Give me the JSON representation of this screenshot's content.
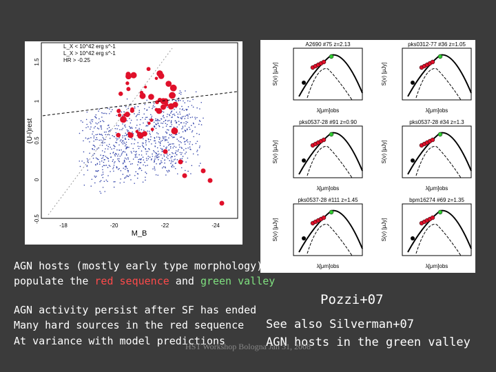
{
  "left_plot": {
    "legend": [
      "L_X < 10^42 erg s^-1",
      "L_X > 10^42 erg s^-1",
      "HR > -0.25"
    ],
    "ylabel": "(U-I)rest",
    "xlabel": "M_B",
    "yticks": [
      "-0.5",
      "0",
      "0.5",
      "1",
      "1.5"
    ],
    "xticks": [
      "-18",
      "-20",
      "-22",
      "-24"
    ]
  },
  "right_panels": [
    {
      "title": "A2690 #75 z=2.13",
      "ylabel": "S(ν) [μJy]",
      "xlabel": "λ[μm]obs"
    },
    {
      "title": "pks0312-77 #36 z=1.05",
      "ylabel": "S(ν) [μJy]",
      "xlabel": "λ[μm]obs"
    },
    {
      "title": "pks0537-28 #91 z=0.90",
      "ylabel": "S(ν) [μJy]",
      "xlabel": "λ[μm]obs"
    },
    {
      "title": "pks0537-28 #34 z=1.3",
      "ylabel": "S(ν) [μJy]",
      "xlabel": "λ[μm]obs"
    },
    {
      "title": "pks0537-28 #111 z=1.45",
      "ylabel": "S(ν) [μJy]",
      "xlabel": "λ[μm]obs"
    },
    {
      "title": "bpm16274 #69 z=1.35",
      "ylabel": "S(ν) [μJy]",
      "xlabel": "λ[μm]obs"
    }
  ],
  "text": {
    "line1": "AGN hosts (mostly early type morphology)",
    "line2a": "populate the ",
    "line2b": "red sequence",
    "line2c": " and ",
    "line2d": "green valley",
    "line3": "AGN activity persist after SF has ended",
    "line4": "Many hard sources in the red sequence",
    "line5": "At variance with model predictions",
    "ref": "Pozzi+07",
    "see": "See also Silverman+07",
    "green": "AGN hosts in the green valley",
    "footer": "HST Workshop Bologna Jan 31, 2008"
  }
}
